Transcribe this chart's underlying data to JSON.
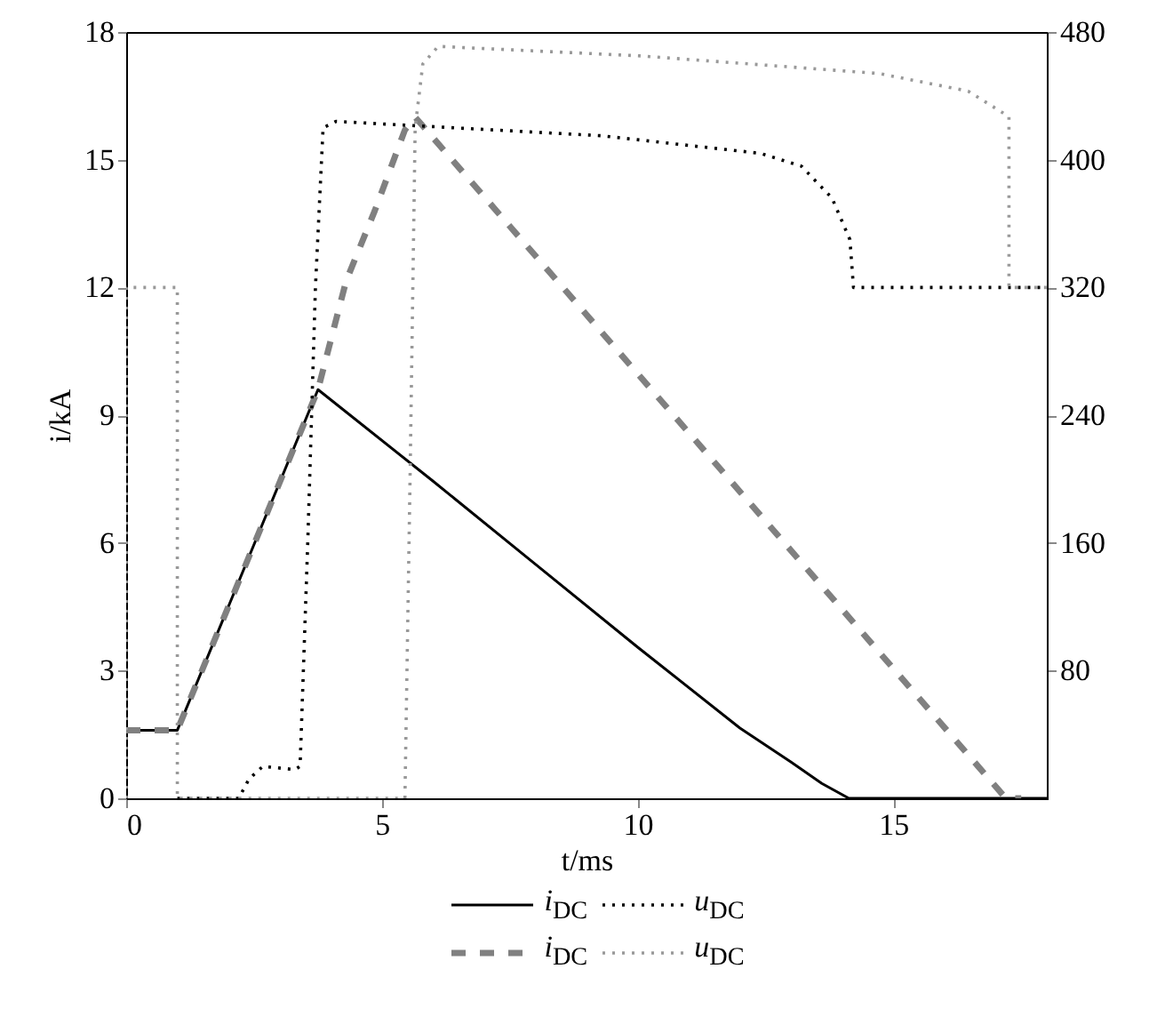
{
  "chart_data": {
    "type": "line",
    "xlabel": "t/ms",
    "ylabel": "i/kA",
    "xlim": [
      0,
      18
    ],
    "xticks": [
      0,
      5,
      10,
      15
    ],
    "ylim": [
      0,
      18
    ],
    "yticks": [
      0,
      3,
      6,
      9,
      12,
      15,
      18
    ],
    "y2lim": [
      0,
      480
    ],
    "y2ticks": [
      80,
      160,
      240,
      320,
      400,
      480
    ],
    "legend": "bottom",
    "grid": false,
    "marker": "none",
    "series": [
      {
        "name": "i$_{DC}$",
        "color": "#000000",
        "line_style": "solid",
        "x": [
          0,
          1,
          3.75,
          6,
          8,
          10,
          12,
          13,
          13.6,
          14.13,
          18
        ],
        "values": [
          1.6,
          1.6,
          9.6,
          7.45,
          5.5,
          3.55,
          1.65,
          0.85,
          0.35,
          0,
          0
        ]
      },
      {
        "name": "u$_{DC}$",
        "axis": "y2",
        "color": "#000000",
        "line_style": "dotted",
        "x": [
          1,
          2.2,
          2.4,
          2.67,
          3.3,
          3.4,
          3.55,
          3.7,
          3.85,
          4.1,
          9.3,
          12.4,
          13.2,
          13.8,
          14.15,
          14.22,
          18
        ],
        "values": [
          0,
          0,
          12,
          20,
          18,
          20,
          160,
          320,
          420,
          424,
          415,
          404,
          396,
          376,
          350,
          320,
          320
        ]
      },
      {
        "name": "i$_{DC}$",
        "color": "#808080",
        "line_style": "dashed",
        "x": [
          0,
          1,
          3.75,
          4.3,
          4.86,
          5.45,
          5.65,
          17.2,
          17.5
        ],
        "values": [
          1.6,
          1.6,
          9.6,
          12.15,
          13.8,
          15.7,
          16.0,
          0,
          0
        ]
      },
      {
        "name": "u$_{DC}$",
        "axis": "y2",
        "color": "#999999",
        "line_style": "dotted",
        "x": [
          0,
          0,
          1,
          1,
          5.45,
          5.55,
          5.65,
          5.8,
          6.1,
          10.07,
          14.72,
          16.46,
          17.26,
          17.26,
          18
        ],
        "values": [
          0,
          320,
          320,
          0,
          0,
          200,
          420,
          460,
          471,
          465,
          454,
          443,
          427,
          320,
          320
        ]
      }
    ]
  }
}
